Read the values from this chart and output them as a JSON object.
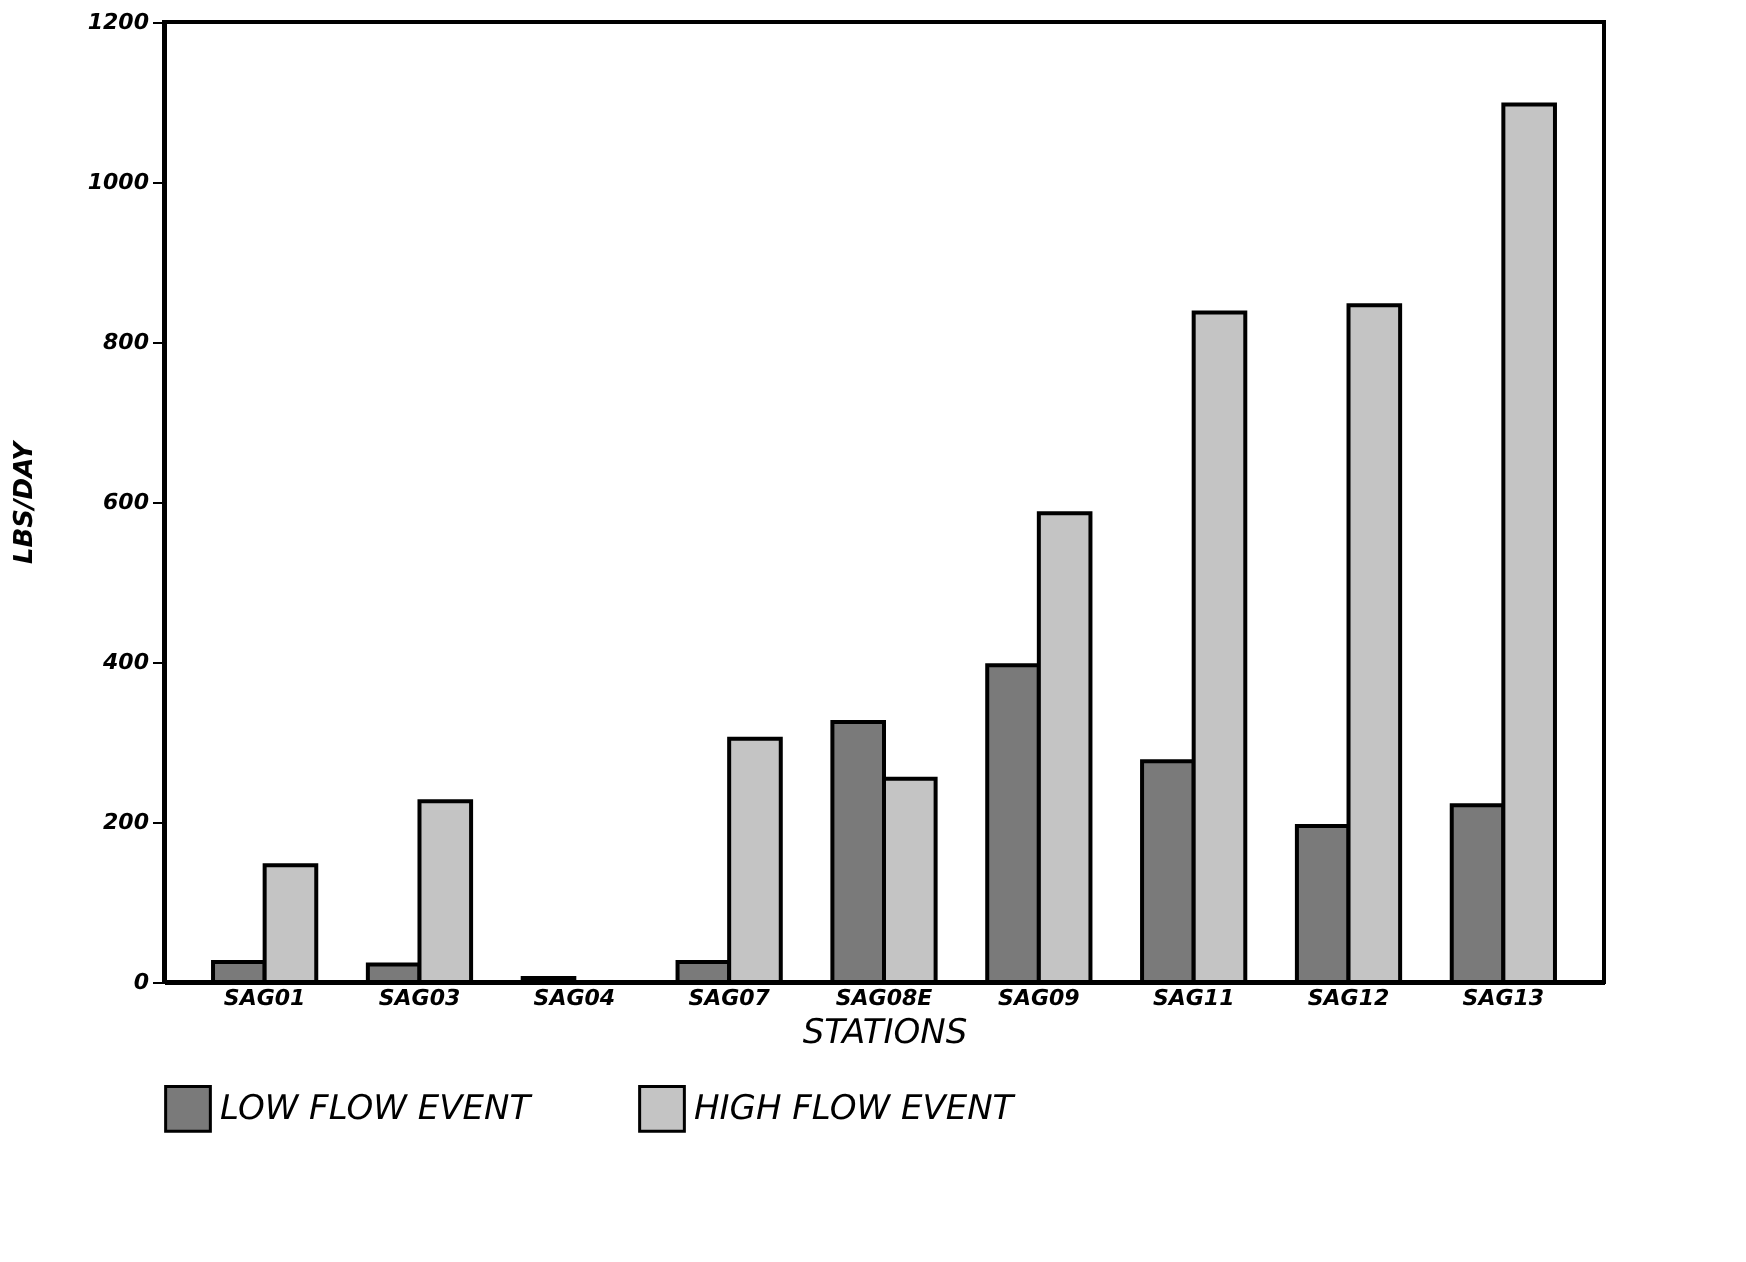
{
  "chart_data": {
    "type": "bar",
    "xlabel": "STATIONS",
    "ylabel": "LBS/DAY",
    "categories": [
      "SAG01",
      "SAG03",
      "SAG04",
      "SAG07",
      "SAG08E",
      "SAG09",
      "SAG11",
      "SAG12",
      "SAG13"
    ],
    "series": [
      {
        "name": "LOW FLOW EVENT",
        "color": "#7a7a7a",
        "values": [
          25,
          22,
          5,
          25,
          325,
          396,
          276,
          195,
          221
        ]
      },
      {
        "name": "HIGH FLOW EVENT",
        "color": "#c4c4c4",
        "values": [
          146,
          226,
          null,
          304,
          254,
          586,
          837,
          846,
          1097
        ]
      }
    ],
    "ylim": [
      0,
      1200
    ],
    "yticks": [
      0,
      200,
      400,
      600,
      800,
      1000,
      1200
    ],
    "grid": false,
    "legend": "bottom"
  }
}
